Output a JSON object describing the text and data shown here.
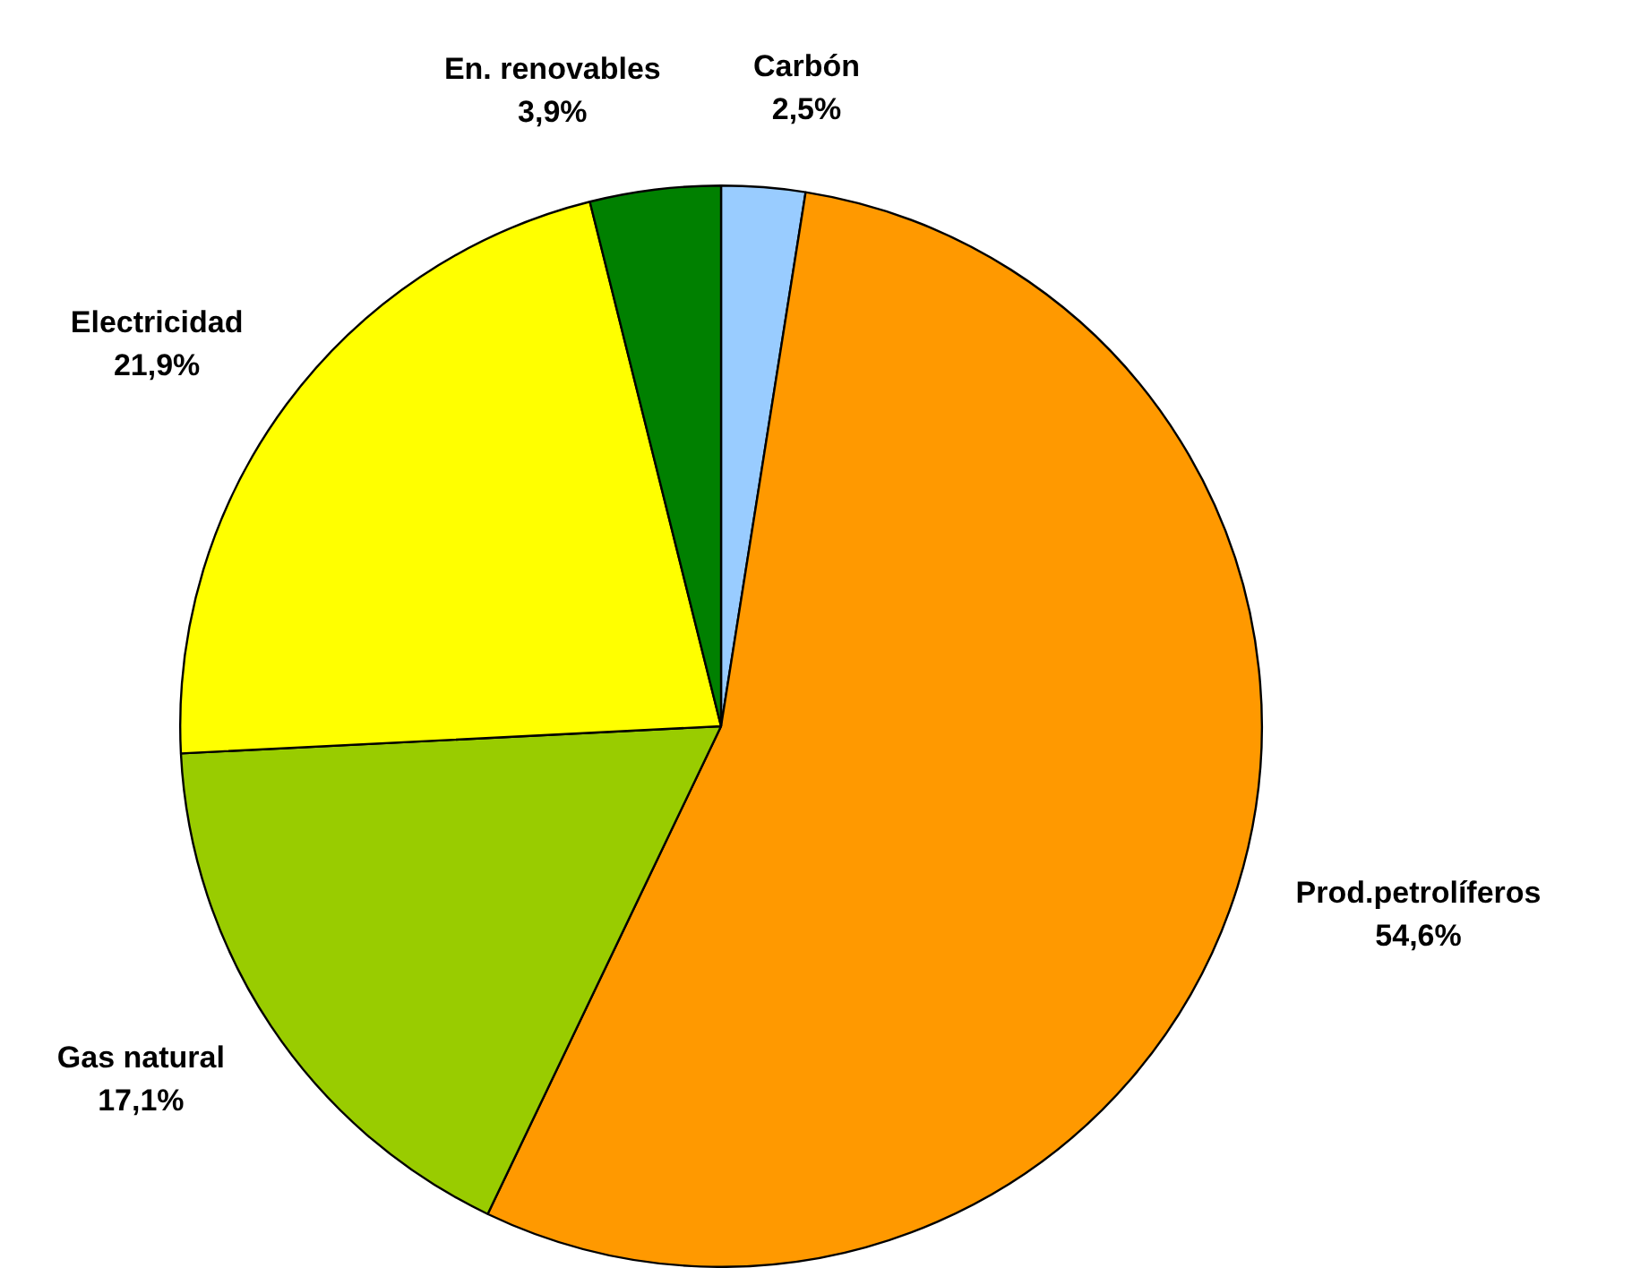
{
  "chart_data": {
    "type": "pie",
    "categories": [
      "Carbón",
      "Prod.petrolíferos",
      "Gas natural",
      "Electricidad",
      "En. renovables"
    ],
    "values": [
      2.5,
      54.6,
      17.1,
      21.9,
      3.9
    ],
    "colors": [
      "#99ccff",
      "#ff9900",
      "#99cc00",
      "#ffff00",
      "#008000"
    ],
    "value_labels": [
      "2,5%",
      "54,6%",
      "17,1%",
      "21,9%",
      "3,9%"
    ],
    "legend": false
  }
}
